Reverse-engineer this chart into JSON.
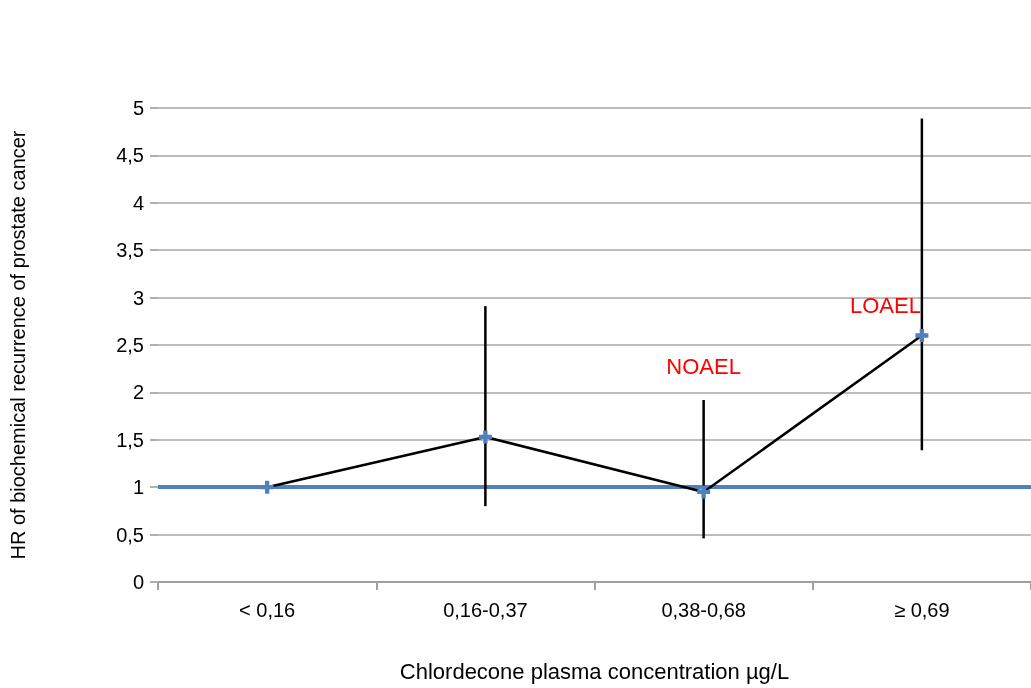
{
  "chart_data": {
    "type": "line",
    "xlabel": "Chlordecone plasma concentration µg/L",
    "ylabel": "HR of biochemical recurrence of prostate cancer",
    "categories": [
      "< 0,16",
      "0,16-0,37",
      "0,38-0,68",
      "≥ 0,69"
    ],
    "series": [
      {
        "color": "#000000",
        "values": [
          1.0,
          1.53,
          0.95,
          2.6
        ],
        "errors": [
          null,
          [
            0.8,
            2.91
          ],
          [
            0.46,
            1.92
          ],
          [
            1.39,
            4.89
          ]
        ]
      }
    ],
    "marker": "cross",
    "ylim": [
      0,
      5
    ],
    "yticks": [
      0,
      {
        "value": 0.5,
        "label": "0,5"
      },
      1,
      {
        "value": 1.5,
        "label": "1,5"
      },
      2,
      {
        "value": 2.5,
        "label": "2,5"
      },
      3,
      {
        "value": 3.5,
        "label": "3,5"
      },
      4,
      {
        "value": 4.5,
        "label": "4,5"
      },
      5
    ],
    "grid": "y",
    "ref_lines": [
      {
        "axis": "y",
        "value": 1,
        "color": "#4f81bd"
      }
    ],
    "annotations": [
      "NOAEL",
      "LOAEL"
    ]
  }
}
